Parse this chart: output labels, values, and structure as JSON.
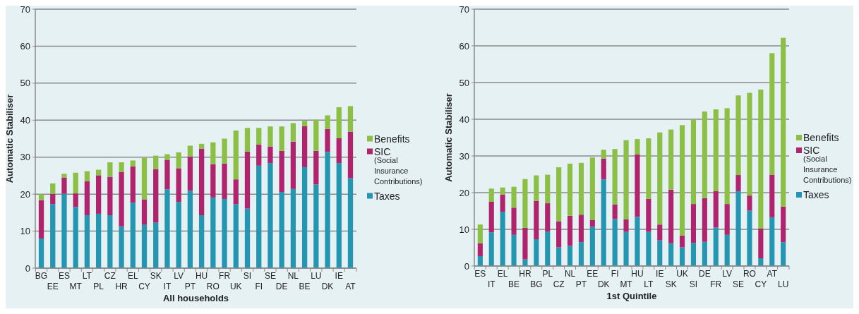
{
  "chart_data": [
    {
      "type": "bar",
      "stacked": true,
      "xlabel": "All households",
      "ylabel": "Automatic Stabiliser",
      "categories": [
        "BG",
        "EE",
        "ES",
        "MT",
        "LT",
        "PL",
        "CZ",
        "HR",
        "EL",
        "CY",
        "SK",
        "IT",
        "LV",
        "PT",
        "HU",
        "RO",
        "FR",
        "UK",
        "SI",
        "FI",
        "SE",
        "DE",
        "NL",
        "BE",
        "LU",
        "DK",
        "IE",
        "AT"
      ],
      "ylim": [
        0,
        70
      ],
      "yticks": [
        0,
        10,
        20,
        30,
        40,
        50,
        60,
        70
      ],
      "grid": "y",
      "legend": "right",
      "series": [
        {
          "name": "Taxes",
          "color": "#2596b1",
          "values": [
            8,
            17.3,
            20.1,
            16.5,
            14.3,
            14.7,
            14.3,
            11.3,
            17.7,
            11.7,
            12.3,
            21.3,
            17.9,
            20.9,
            14.3,
            19.1,
            18.7,
            17.3,
            16.1,
            27.7,
            28.4,
            20.6,
            21.4,
            27.3,
            22.6,
            31.4,
            28.4,
            24.3
          ]
        },
        {
          "name": "SIC (Social Insurance Contributions)",
          "color": "#b0246e",
          "values": [
            10.4,
            2.8,
            4.4,
            3.7,
            9.2,
            10.4,
            10.4,
            14.7,
            9.8,
            6.9,
            14.5,
            8,
            9.1,
            9.3,
            18,
            9,
            9.6,
            6.7,
            15.4,
            5.7,
            4.5,
            11.1,
            12.8,
            11.1,
            9.1,
            6.2,
            6.7,
            12.6
          ]
        },
        {
          "name": "Benefits",
          "color": "#8bc045",
          "values": [
            1.6,
            2.8,
            1,
            5.6,
            2.7,
            1.5,
            3.9,
            2.6,
            1.6,
            11.2,
            3.6,
            1.5,
            4.3,
            2.9,
            1.3,
            5.9,
            6.7,
            13.2,
            6.4,
            4.5,
            5.4,
            6.6,
            5,
            1.4,
            8.4,
            3.7,
            8.4,
            6.9
          ]
        }
      ]
    },
    {
      "type": "bar",
      "stacked": true,
      "xlabel": "1st Quintile",
      "ylabel": "Automatic Stabiliser",
      "categories": [
        "ES",
        "IT",
        "EL",
        "BE",
        "HR",
        "BG",
        "PL",
        "CZ",
        "NL",
        "PT",
        "EE",
        "DK",
        "FI",
        "MT",
        "HU",
        "LT",
        "IE",
        "SK",
        "UK",
        "SI",
        "DE",
        "FR",
        "LV",
        "SE",
        "RO",
        "CY",
        "AT",
        "LU"
      ],
      "ylim": [
        0,
        70
      ],
      "yticks": [
        0,
        10,
        20,
        30,
        40,
        50,
        60,
        70
      ],
      "grid": "y",
      "legend": "right",
      "series": [
        {
          "name": "Taxes",
          "color": "#2596b1",
          "values": [
            2.7,
            9.2,
            14.8,
            8.5,
            1.8,
            7.3,
            9.4,
            5.1,
            5.5,
            6.5,
            10.7,
            23.6,
            12.8,
            9.3,
            13.4,
            9.3,
            7,
            6.2,
            5.1,
            6.3,
            6.6,
            10.5,
            8.5,
            20.4,
            15.1,
            2.1,
            13.3,
            6.5
          ]
        },
        {
          "name": "SIC (Social Insurance Contributions)",
          "color": "#b0246e",
          "values": [
            3.5,
            8.3,
            4.7,
            7.4,
            8.6,
            10.4,
            7.7,
            7.1,
            8.2,
            7.5,
            1.9,
            5.7,
            4,
            3.4,
            17,
            9,
            4.3,
            14.6,
            3.2,
            10.6,
            11.9,
            9.9,
            8.4,
            4.4,
            4.1,
            8.1,
            11.6,
            9.7
          ]
        },
        {
          "name": "Benefits",
          "color": "#8bc045",
          "values": [
            5.1,
            3.6,
            1.9,
            5.7,
            13.3,
            7,
            7.8,
            14.7,
            14.2,
            14.1,
            17,
            2.4,
            15.1,
            21.6,
            4.2,
            16.5,
            25.1,
            16.4,
            30.1,
            23,
            23.6,
            22.3,
            26.1,
            21.7,
            28,
            37.9,
            33.1,
            46
          ]
        }
      ]
    }
  ]
}
